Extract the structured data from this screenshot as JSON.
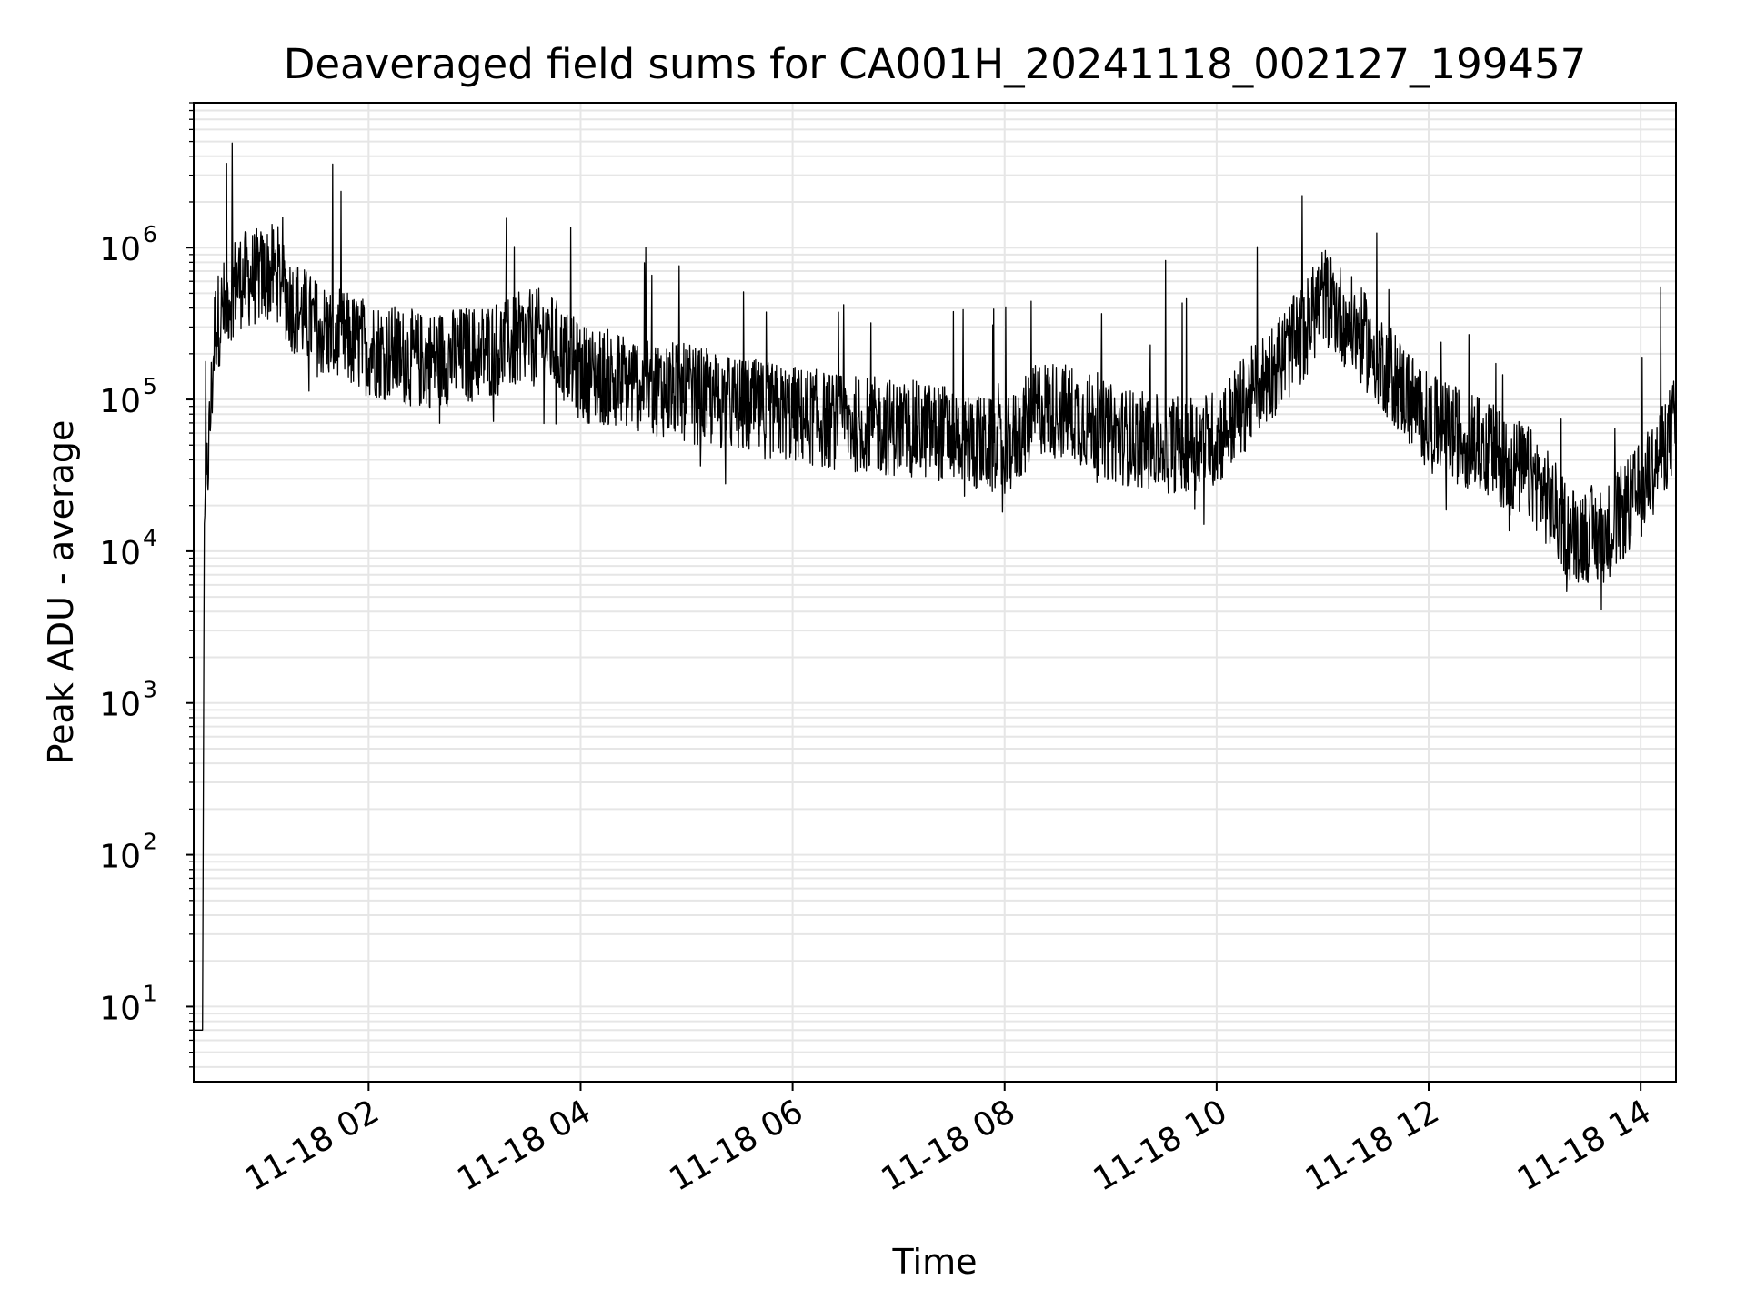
{
  "chart_data": {
    "type": "line",
    "title": "Deaveraged field sums for CA001H_20241118_002127_199457",
    "xlabel": "Time",
    "ylabel": "Peak ADU - average",
    "yscale": "log",
    "ylim": [
      3.2,
      9000000
    ],
    "xlim": [
      "2024-11-18 00:21",
      "2024-11-18 14:20"
    ],
    "grid": true,
    "line_color": "#000000",
    "x_ticks": [
      "11-18 02",
      "11-18 04",
      "11-18 06",
      "11-18 08",
      "11-18 10",
      "11-18 12",
      "11-18 14"
    ],
    "x_tick_times": [
      "2024-11-18 02:00",
      "2024-11-18 04:00",
      "2024-11-18 06:00",
      "2024-11-18 08:00",
      "2024-11-18 10:00",
      "2024-11-18 12:00",
      "2024-11-18 14:00"
    ],
    "y_ticks": [
      {
        "base": "10",
        "exp": "1",
        "value": 10
      },
      {
        "base": "10",
        "exp": "2",
        "value": 100
      },
      {
        "base": "10",
        "exp": "3",
        "value": 1000
      },
      {
        "base": "10",
        "exp": "4",
        "value": 10000
      },
      {
        "base": "10",
        "exp": "5",
        "value": 100000
      },
      {
        "base": "10",
        "exp": "6",
        "value": 1000000
      }
    ],
    "series": [
      {
        "x": [
          "2024-11-18 00:21",
          "2024-11-18 00:24",
          "2024-11-18 00:25",
          "2024-11-18 00:26",
          "2024-11-18 00:27",
          "2024-11-18 00:30",
          "2024-11-18 00:33",
          "2024-11-18 00:45",
          "2024-11-18 01:00",
          "2024-11-18 01:08",
          "2024-11-18 01:15",
          "2024-11-18 01:30",
          "2024-11-18 01:45",
          "2024-11-18 02:00",
          "2024-11-18 02:30",
          "2024-11-18 03:00",
          "2024-11-18 03:30",
          "2024-11-18 03:40",
          "2024-11-18 04:00",
          "2024-11-18 04:30",
          "2024-11-18 05:00",
          "2024-11-18 05:30",
          "2024-11-18 06:00",
          "2024-11-18 06:30",
          "2024-11-18 07:00",
          "2024-11-18 07:30",
          "2024-11-18 08:00",
          "2024-11-18 08:20",
          "2024-11-18 08:40",
          "2024-11-18 09:00",
          "2024-11-18 09:30",
          "2024-11-18 10:00",
          "2024-11-18 10:30",
          "2024-11-18 10:50",
          "2024-11-18 11:00",
          "2024-11-18 11:15",
          "2024-11-18 11:30",
          "2024-11-18 12:00",
          "2024-11-18 12:30",
          "2024-11-18 13:00",
          "2024-11-18 13:20",
          "2024-11-18 13:40",
          "2024-11-18 14:00",
          "2024-11-18 14:20"
        ],
        "y": [
          7,
          7,
          7,
          7,
          15000,
          60000,
          300000,
          600000,
          650000,
          700000,
          450000,
          300000,
          250000,
          220000,
          180000,
          200000,
          250000,
          260000,
          150000,
          130000,
          110000,
          90000,
          80000,
          70000,
          65000,
          60000,
          45000,
          90000,
          80000,
          60000,
          50000,
          55000,
          150000,
          280000,
          500000,
          320000,
          200000,
          70000,
          50000,
          30000,
          13000,
          13000,
          25000,
          70000
        ]
      }
    ]
  }
}
